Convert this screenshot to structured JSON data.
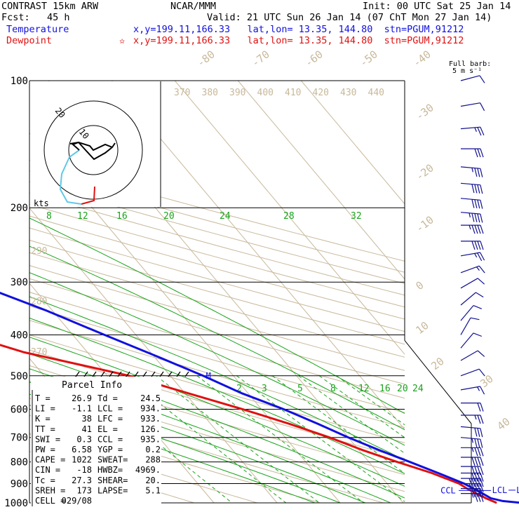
{
  "header": {
    "model": "CONTRAST 15km ARW",
    "fcst": "Fcst:   45 h",
    "org": "NCAR/MMM",
    "init": "Init: 00 UTC Sat 25 Jan 14",
    "valid": "Valid: 21 UTC Sun 26 Jan 14 (07 ChT Mon 27 Jan 14)",
    "temp_label": "Temperature",
    "dew_label": "Dewpoint",
    "temp_loc": "x,y=199.11,166.33   lat,lon= 13.35, 144.80  stn=PGUM,91212",
    "dew_marker": "✫",
    "dew_loc": "x,y=199.11,166.33   lat,lon= 13.35, 144.80  stn=PGUM,91212",
    "barb_title": "Full barb:",
    "barb_unit": "5 m s⁻¹"
  },
  "colors": {
    "temperature": "#1010e0",
    "dewpoint": "#e01010",
    "isotherm": "#c8b89a",
    "dry_adiabat": "#c8b89a",
    "moist_adiabat": "#1aa31a",
    "mixing_ratio": "#1aa31a",
    "isobar": "#000000",
    "hodo_upper": "#000000",
    "hodo_mid": "#5fc8e8",
    "hodo_low": "#e01010",
    "wind_barb": "#101090"
  },
  "chart_data": {
    "type": "skew-t",
    "pressure_levels": [
      100,
      200,
      300,
      400,
      500,
      600,
      700,
      800,
      900,
      1000
    ],
    "pressure_labels": [
      "100",
      "200",
      "300",
      "400",
      "500",
      "600",
      "700",
      "800",
      "900",
      "1000"
    ],
    "isotherm_labels": [
      "-80",
      "-70",
      "-60",
      "-50",
      "-40",
      "-30",
      "-20",
      "-10",
      "0",
      "10",
      "20",
      "30",
      "40"
    ],
    "theta_labels": [
      "370",
      "380",
      "390",
      "400",
      "410",
      "420",
      "430",
      "440"
    ],
    "theta_left_labels": [
      "290",
      "280",
      "270"
    ],
    "theta_e_labels": [
      "8",
      "12",
      "16",
      "20",
      "24",
      "28",
      "32"
    ],
    "mixing_ratio_labels": [
      "2",
      "3",
      "5",
      "8",
      "12",
      "16",
      "20",
      "24"
    ],
    "temperature_profile": [
      {
        "p": 1000,
        "t": 28.8
      },
      {
        "p": 990,
        "t": 26.0
      },
      {
        "p": 975,
        "t": 24.5
      },
      {
        "p": 950,
        "t": 23.8
      },
      {
        "p": 925,
        "t": 23.0
      },
      {
        "p": 900,
        "t": 22.2
      },
      {
        "p": 850,
        "t": 19.5
      },
      {
        "p": 800,
        "t": 16.5
      },
      {
        "p": 750,
        "t": 13.2
      },
      {
        "p": 700,
        "t": 10.0
      },
      {
        "p": 650,
        "t": 7.0
      },
      {
        "p": 600,
        "t": 3.5
      },
      {
        "p": 550,
        "t": -1.0
      },
      {
        "p": 500,
        "t": -4.8
      },
      {
        "p": 450,
        "t": -9.5
      },
      {
        "p": 400,
        "t": -15.0
      },
      {
        "p": 350,
        "t": -21.0
      },
      {
        "p": 300,
        "t": -29.0
      },
      {
        "p": 250,
        "t": -37.0
      },
      {
        "p": 200,
        "t": -47.0
      },
      {
        "p": 175,
        "t": -54.0
      },
      {
        "p": 150,
        "t": -62.0
      },
      {
        "p": 126,
        "t": -73.0
      },
      {
        "p": 110,
        "t": -80.0
      },
      {
        "p": 100,
        "t": -82.5
      }
    ],
    "dewpoint_profile": [
      {
        "p": 1000,
        "t": 24.8
      },
      {
        "p": 975,
        "t": 23.7
      },
      {
        "p": 950,
        "t": 22.8
      },
      {
        "p": 925,
        "t": 22.0
      },
      {
        "p": 900,
        "t": 21.4
      },
      {
        "p": 850,
        "t": 18.5
      },
      {
        "p": 800,
        "t": 14.5
      },
      {
        "p": 750,
        "t": 10.6
      },
      {
        "p": 700,
        "t": 7.0
      },
      {
        "p": 650,
        "t": 2.5
      },
      {
        "p": 600,
        "t": -3.0
      },
      {
        "p": 550,
        "t": -9.5
      },
      {
        "p": 500,
        "t": -16.5
      },
      {
        "p": 470,
        "t": -23.0
      },
      {
        "p": 440,
        "t": -30.0
      },
      {
        "p": 410,
        "t": -35.0
      },
      {
        "p": 390,
        "t": -31.5
      },
      {
        "p": 370,
        "t": -31.5
      },
      {
        "p": 330,
        "t": -36.0
      },
      {
        "p": 300,
        "t": -40.0
      },
      {
        "p": 260,
        "t": -45.0
      },
      {
        "p": 230,
        "t": -49.0
      },
      {
        "p": 200,
        "t": -53.0
      },
      {
        "p": 175,
        "t": -59.0
      },
      {
        "p": 150,
        "t": -68.0
      },
      {
        "p": 135,
        "t": -80.0
      },
      {
        "p": 120,
        "t": -90.0
      },
      {
        "p": 110,
        "t": -92.0
      },
      {
        "p": 100,
        "t": -93.0
      }
    ],
    "markers": [
      {
        "label": "EL",
        "p": 126
      },
      {
        "label": "M",
        "p": 500
      },
      {
        "label": "CCL",
        "p": 935
      },
      {
        "label": "LCL",
        "p": 934
      },
      {
        "label": "LFC",
        "p": 933
      }
    ],
    "hodograph": {
      "ring_labels": [
        "20",
        "10"
      ],
      "unit": "kts"
    },
    "wind_barbs": [
      {
        "p": 100,
        "dir": 75,
        "spd": 10
      },
      {
        "p": 115,
        "dir": 80,
        "spd": 12
      },
      {
        "p": 130,
        "dir": 85,
        "spd": 25
      },
      {
        "p": 145,
        "dir": 90,
        "spd": 30
      },
      {
        "p": 160,
        "dir": 95,
        "spd": 35
      },
      {
        "p": 175,
        "dir": 95,
        "spd": 40
      },
      {
        "p": 190,
        "dir": 95,
        "spd": 40
      },
      {
        "p": 205,
        "dir": 95,
        "spd": 45
      },
      {
        "p": 220,
        "dir": 90,
        "spd": 45
      },
      {
        "p": 240,
        "dir": 90,
        "spd": 40
      },
      {
        "p": 260,
        "dir": 80,
        "spd": 25
      },
      {
        "p": 285,
        "dir": 70,
        "spd": 15
      },
      {
        "p": 310,
        "dir": 60,
        "spd": 10
      },
      {
        "p": 340,
        "dir": 50,
        "spd": 10
      },
      {
        "p": 370,
        "dir": 40,
        "spd": 10
      },
      {
        "p": 400,
        "dir": 30,
        "spd": 10
      },
      {
        "p": 430,
        "dir": 40,
        "spd": 10
      },
      {
        "p": 460,
        "dir": 60,
        "spd": 10
      },
      {
        "p": 500,
        "dir": 70,
        "spd": 10
      },
      {
        "p": 540,
        "dir": 80,
        "spd": 15
      },
      {
        "p": 580,
        "dir": 90,
        "spd": 20
      },
      {
        "p": 620,
        "dir": 90,
        "spd": 25
      },
      {
        "p": 660,
        "dir": 95,
        "spd": 30
      },
      {
        "p": 700,
        "dir": 95,
        "spd": 35
      },
      {
        "p": 740,
        "dir": 90,
        "spd": 35
      },
      {
        "p": 780,
        "dir": 90,
        "spd": 40
      },
      {
        "p": 820,
        "dir": 90,
        "spd": 40
      },
      {
        "p": 850,
        "dir": 90,
        "spd": 40
      },
      {
        "p": 875,
        "dir": 90,
        "spd": 45
      },
      {
        "p": 900,
        "dir": 90,
        "spd": 45
      },
      {
        "p": 925,
        "dir": 90,
        "spd": 40
      },
      {
        "p": 950,
        "dir": 90,
        "spd": 35
      }
    ]
  },
  "parcel_info": {
    "title": "Parcel Info",
    "rows": [
      [
        "T  =",
        "26.9",
        "Td =",
        "24.5"
      ],
      [
        "LI =",
        "-1.1",
        "LCL =",
        "934."
      ],
      [
        "K  =",
        "38",
        "LFC =",
        "933."
      ],
      [
        "TT =",
        "41",
        "EL  =",
        "126."
      ],
      [
        "SWI =",
        "0.3",
        "CCL =",
        "935."
      ],
      [
        "PW =",
        "6.58",
        "YGP =",
        "0.2"
      ],
      [
        "CAPE =",
        "1022",
        "SWEAT=",
        "288"
      ],
      [
        "CIN =",
        "-18",
        "HWBZ=",
        "4969."
      ],
      [
        "Tc =",
        "27.3",
        "SHEAR=",
        "20."
      ],
      [
        "SREH =",
        "173",
        "LAPSE=",
        "5.1"
      ],
      [
        "CELL =",
        "029/08",
        "",
        ""
      ]
    ]
  }
}
